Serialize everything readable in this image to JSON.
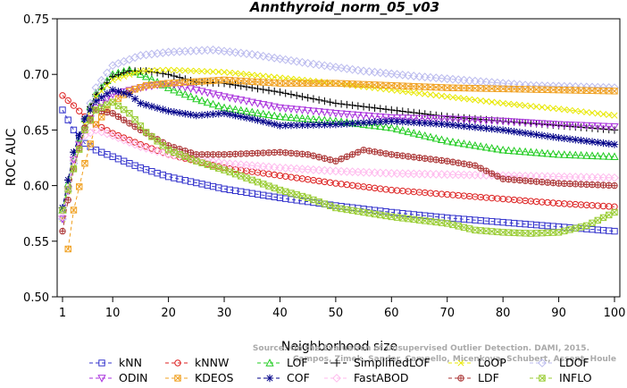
{
  "chart_data": {
    "type": "line",
    "title": "Annthyroid_norm_05_v03",
    "xlabel": "Neighborhood size",
    "ylabel": "ROC AUC",
    "xlim": [
      1,
      100
    ],
    "ylim": [
      0.5,
      0.75
    ],
    "x_ticks": [
      1,
      10,
      20,
      30,
      40,
      50,
      60,
      70,
      80,
      90,
      100
    ],
    "y_ticks": [
      "0.50",
      "0.55",
      "0.60",
      "0.65",
      "0.70",
      "0.75"
    ],
    "grid": false,
    "legend_position": "bottom",
    "watermark": [
      "Source: On the Evaluation of Unsupervised Outlier Detection. DAMI, 2015.",
      "Campos, Zimek, Sander, Campello, Micenkova, Schubert, Assent, Houle"
    ],
    "series": [
      {
        "name": "kNN",
        "color": "#3333cc",
        "marker": "square",
        "points": [
          [
            1,
            0.668
          ],
          [
            3,
            0.65
          ],
          [
            5,
            0.638
          ],
          [
            7,
            0.632
          ],
          [
            10,
            0.626
          ],
          [
            15,
            0.616
          ],
          [
            20,
            0.608
          ],
          [
            30,
            0.597
          ],
          [
            40,
            0.589
          ],
          [
            50,
            0.582
          ],
          [
            60,
            0.576
          ],
          [
            70,
            0.571
          ],
          [
            80,
            0.567
          ],
          [
            90,
            0.563
          ],
          [
            100,
            0.559
          ]
        ]
      },
      {
        "name": "kNNW",
        "color": "#dd2222",
        "marker": "circle",
        "points": [
          [
            1,
            0.681
          ],
          [
            3,
            0.672
          ],
          [
            5,
            0.662
          ],
          [
            7,
            0.655
          ],
          [
            10,
            0.647
          ],
          [
            15,
            0.637
          ],
          [
            20,
            0.628
          ],
          [
            30,
            0.616
          ],
          [
            40,
            0.609
          ],
          [
            50,
            0.602
          ],
          [
            60,
            0.596
          ],
          [
            70,
            0.592
          ],
          [
            80,
            0.588
          ],
          [
            90,
            0.584
          ],
          [
            100,
            0.581
          ]
        ]
      },
      {
        "name": "LOF",
        "color": "#22cc22",
        "marker": "triangle",
        "points": [
          [
            1,
            0.578
          ],
          [
            3,
            0.625
          ],
          [
            5,
            0.66
          ],
          [
            7,
            0.683
          ],
          [
            10,
            0.7
          ],
          [
            13,
            0.704
          ],
          [
            16,
            0.698
          ],
          [
            20,
            0.688
          ],
          [
            25,
            0.678
          ],
          [
            30,
            0.67
          ],
          [
            40,
            0.662
          ],
          [
            50,
            0.658
          ],
          [
            60,
            0.652
          ],
          [
            70,
            0.64
          ],
          [
            80,
            0.632
          ],
          [
            90,
            0.628
          ],
          [
            100,
            0.626
          ]
        ]
      },
      {
        "name": "SimplifiedLOF",
        "color": "#000000",
        "marker": "plus",
        "points": [
          [
            1,
            0.58
          ],
          [
            3,
            0.63
          ],
          [
            5,
            0.66
          ],
          [
            7,
            0.682
          ],
          [
            10,
            0.698
          ],
          [
            13,
            0.703
          ],
          [
            16,
            0.703
          ],
          [
            20,
            0.7
          ],
          [
            25,
            0.693
          ],
          [
            30,
            0.692
          ],
          [
            40,
            0.684
          ],
          [
            50,
            0.674
          ],
          [
            60,
            0.668
          ],
          [
            70,
            0.662
          ],
          [
            80,
            0.658
          ],
          [
            90,
            0.654
          ],
          [
            100,
            0.65
          ]
        ]
      },
      {
        "name": "LoOP",
        "color": "#e8e800",
        "marker": "x",
        "points": [
          [
            1,
            0.57
          ],
          [
            3,
            0.62
          ],
          [
            5,
            0.655
          ],
          [
            7,
            0.68
          ],
          [
            10,
            0.695
          ],
          [
            15,
            0.703
          ],
          [
            20,
            0.704
          ],
          [
            30,
            0.702
          ],
          [
            40,
            0.697
          ],
          [
            50,
            0.692
          ],
          [
            60,
            0.686
          ],
          [
            70,
            0.68
          ],
          [
            80,
            0.674
          ],
          [
            90,
            0.669
          ],
          [
            100,
            0.663
          ]
        ]
      },
      {
        "name": "LDOF",
        "color": "#bbbbee",
        "marker": "diamond",
        "points": [
          [
            1,
            0.57
          ],
          [
            3,
            0.62
          ],
          [
            5,
            0.66
          ],
          [
            7,
            0.688
          ],
          [
            10,
            0.708
          ],
          [
            15,
            0.717
          ],
          [
            20,
            0.72
          ],
          [
            28,
            0.722
          ],
          [
            35,
            0.718
          ],
          [
            45,
            0.71
          ],
          [
            55,
            0.703
          ],
          [
            65,
            0.698
          ],
          [
            75,
            0.694
          ],
          [
            85,
            0.69
          ],
          [
            100,
            0.688
          ]
        ]
      },
      {
        "name": "ODIN",
        "color": "#aa33dd",
        "marker": "triangle-down",
        "points": [
          [
            1,
            0.57
          ],
          [
            3,
            0.623
          ],
          [
            5,
            0.65
          ],
          [
            7,
            0.67
          ],
          [
            10,
            0.682
          ],
          [
            15,
            0.688
          ],
          [
            20,
            0.692
          ],
          [
            30,
            0.68
          ],
          [
            40,
            0.67
          ],
          [
            50,
            0.665
          ],
          [
            60,
            0.661
          ],
          [
            70,
            0.66
          ],
          [
            80,
            0.658
          ],
          [
            90,
            0.655
          ],
          [
            100,
            0.653
          ]
        ]
      },
      {
        "name": "KDEOS",
        "color": "#f0a020",
        "marker": "square-x",
        "points": [
          [
            2,
            0.543
          ],
          [
            3,
            0.578
          ],
          [
            5,
            0.62
          ],
          [
            7,
            0.655
          ],
          [
            10,
            0.675
          ],
          [
            13,
            0.685
          ],
          [
            16,
            0.69
          ],
          [
            20,
            0.692
          ],
          [
            30,
            0.695
          ],
          [
            40,
            0.692
          ],
          [
            50,
            0.692
          ],
          [
            60,
            0.69
          ],
          [
            70,
            0.688
          ],
          [
            80,
            0.687
          ],
          [
            90,
            0.686
          ],
          [
            100,
            0.685
          ]
        ]
      },
      {
        "name": "COF",
        "color": "#000088",
        "marker": "star",
        "points": [
          [
            1,
            0.58
          ],
          [
            3,
            0.63
          ],
          [
            5,
            0.66
          ],
          [
            7,
            0.676
          ],
          [
            10,
            0.686
          ],
          [
            13,
            0.682
          ],
          [
            15,
            0.674
          ],
          [
            20,
            0.667
          ],
          [
            25,
            0.663
          ],
          [
            30,
            0.665
          ],
          [
            35,
            0.66
          ],
          [
            40,
            0.654
          ],
          [
            50,
            0.655
          ],
          [
            60,
            0.658
          ],
          [
            70,
            0.655
          ],
          [
            80,
            0.65
          ],
          [
            90,
            0.643
          ],
          [
            100,
            0.637
          ]
        ]
      },
      {
        "name": "FastABOD",
        "color": "#ffbbee",
        "marker": "diamond",
        "points": [
          [
            1,
            0.572
          ],
          [
            3,
            0.623
          ],
          [
            5,
            0.645
          ],
          [
            7,
            0.65
          ],
          [
            10,
            0.645
          ],
          [
            15,
            0.635
          ],
          [
            20,
            0.628
          ],
          [
            30,
            0.62
          ],
          [
            40,
            0.616
          ],
          [
            50,
            0.613
          ],
          [
            60,
            0.611
          ],
          [
            70,
            0.61
          ],
          [
            80,
            0.609
          ],
          [
            90,
            0.608
          ],
          [
            100,
            0.607
          ]
        ]
      },
      {
        "name": "LDF",
        "color": "#aa3333",
        "marker": "circle-plus",
        "points": [
          [
            1,
            0.559
          ],
          [
            3,
            0.615
          ],
          [
            5,
            0.652
          ],
          [
            7,
            0.668
          ],
          [
            10,
            0.665
          ],
          [
            15,
            0.65
          ],
          [
            20,
            0.636
          ],
          [
            25,
            0.628
          ],
          [
            30,
            0.628
          ],
          [
            40,
            0.63
          ],
          [
            45,
            0.628
          ],
          [
            50,
            0.622
          ],
          [
            55,
            0.632
          ],
          [
            60,
            0.628
          ],
          [
            70,
            0.622
          ],
          [
            75,
            0.618
          ],
          [
            80,
            0.606
          ],
          [
            90,
            0.602
          ],
          [
            100,
            0.6
          ]
        ]
      },
      {
        "name": "INFLO",
        "color": "#99cc33",
        "marker": "square-x",
        "points": [
          [
            1,
            0.578
          ],
          [
            3,
            0.615
          ],
          [
            5,
            0.65
          ],
          [
            7,
            0.668
          ],
          [
            10,
            0.675
          ],
          [
            13,
            0.665
          ],
          [
            16,
            0.648
          ],
          [
            20,
            0.632
          ],
          [
            25,
            0.622
          ],
          [
            30,
            0.614
          ],
          [
            35,
            0.605
          ],
          [
            40,
            0.596
          ],
          [
            45,
            0.589
          ],
          [
            50,
            0.58
          ],
          [
            60,
            0.572
          ],
          [
            70,
            0.566
          ],
          [
            75,
            0.56
          ],
          [
            80,
            0.558
          ],
          [
            85,
            0.557
          ],
          [
            90,
            0.558
          ],
          [
            95,
            0.564
          ],
          [
            100,
            0.576
          ]
        ]
      }
    ]
  }
}
